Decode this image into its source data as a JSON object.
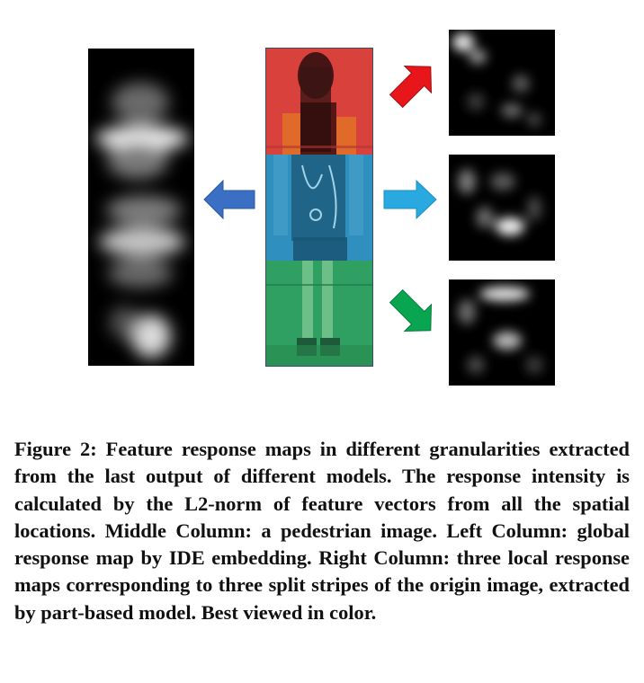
{
  "figure": {
    "label": "Figure 2:",
    "caption": "Feature response maps in different granularities extracted from the last output of different models. The response intensity is calculated by the L2-norm of feature vectors from all the spatial locations. Middle Column: a pedestrian image. Left Column: global response map by IDE embedding. Right Column: three local response maps corresponding to three split stripes of the origin image, extracted by part-based model. Best viewed in color."
  },
  "colors": {
    "stripe_top": "#d9413c",
    "stripe_middle": "#2f8fbf",
    "stripe_bottom": "#2fa062",
    "arrow_left": "#3a6fc4",
    "arrow_right": "#2aa8e0",
    "arrow_up_right": "#e8161b",
    "arrow_down_right": "#0aa551"
  },
  "icons": {
    "left": "arrow-left-icon",
    "right": "arrow-right-icon",
    "up_right": "arrow-up-right-icon",
    "down_right": "arrow-down-right-icon"
  }
}
